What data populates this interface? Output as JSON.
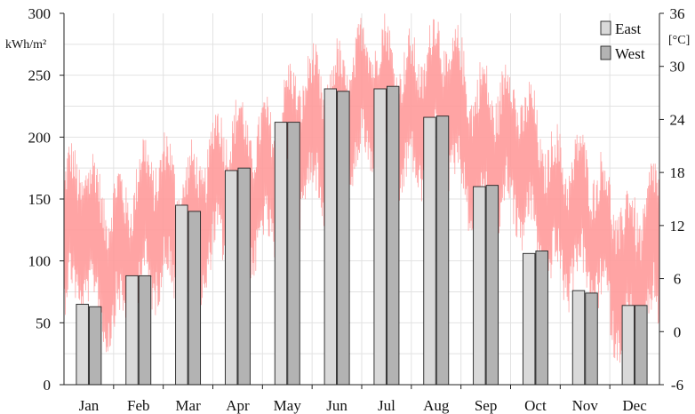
{
  "chart_data": {
    "type": "bar",
    "categories": [
      "Jan",
      "Feb",
      "Mar",
      "Apr",
      "May",
      "Jun",
      "Jul",
      "Aug",
      "Sep",
      "Oct",
      "Nov",
      "Dec"
    ],
    "series": [
      {
        "name": "East",
        "values": [
          65,
          88,
          145,
          173,
          212,
          239,
          239,
          216,
          160,
          106,
          76,
          64
        ],
        "color": "#d9d9d9"
      },
      {
        "name": "West",
        "values": [
          63,
          88,
          140,
          175,
          212,
          237,
          241,
          217,
          161,
          108,
          74,
          64
        ],
        "color": "#b3b3b3"
      }
    ],
    "ylabel": "kWh/m²",
    "ylim": [
      0,
      300
    ],
    "yticks": [
      "300",
      "250",
      "200",
      "150",
      "100",
      "50",
      "0"
    ],
    "y2label": "[°C]",
    "y2lim": [
      -6,
      36
    ],
    "y2ticks": [
      "36",
      "30",
      "24",
      "18",
      "12",
      "6",
      "0",
      "-6"
    ],
    "temperature_series": {
      "name": "",
      "type": "line",
      "color": "#ff9a9a",
      "resolution": "hourly",
      "monthly_range_celsius": [
        {
          "month": "Jan",
          "min": -3,
          "max": 20
        },
        {
          "month": "Feb",
          "min": -1,
          "max": 22
        },
        {
          "month": "Mar",
          "min": 2,
          "max": 23
        },
        {
          "month": "Apr",
          "min": 5,
          "max": 27
        },
        {
          "month": "May",
          "min": 9,
          "max": 30
        },
        {
          "month": "Jun",
          "min": 13,
          "max": 35
        },
        {
          "month": "Jul",
          "min": 15,
          "max": 36
        },
        {
          "month": "Aug",
          "min": 14,
          "max": 36
        },
        {
          "month": "Sep",
          "min": 10,
          "max": 33
        },
        {
          "month": "Oct",
          "min": 6,
          "max": 28
        },
        {
          "month": "Nov",
          "min": 0,
          "max": 22
        },
        {
          "month": "Dec",
          "min": -5,
          "max": 19
        }
      ]
    },
    "grid": true,
    "legend_position": "top-right"
  }
}
